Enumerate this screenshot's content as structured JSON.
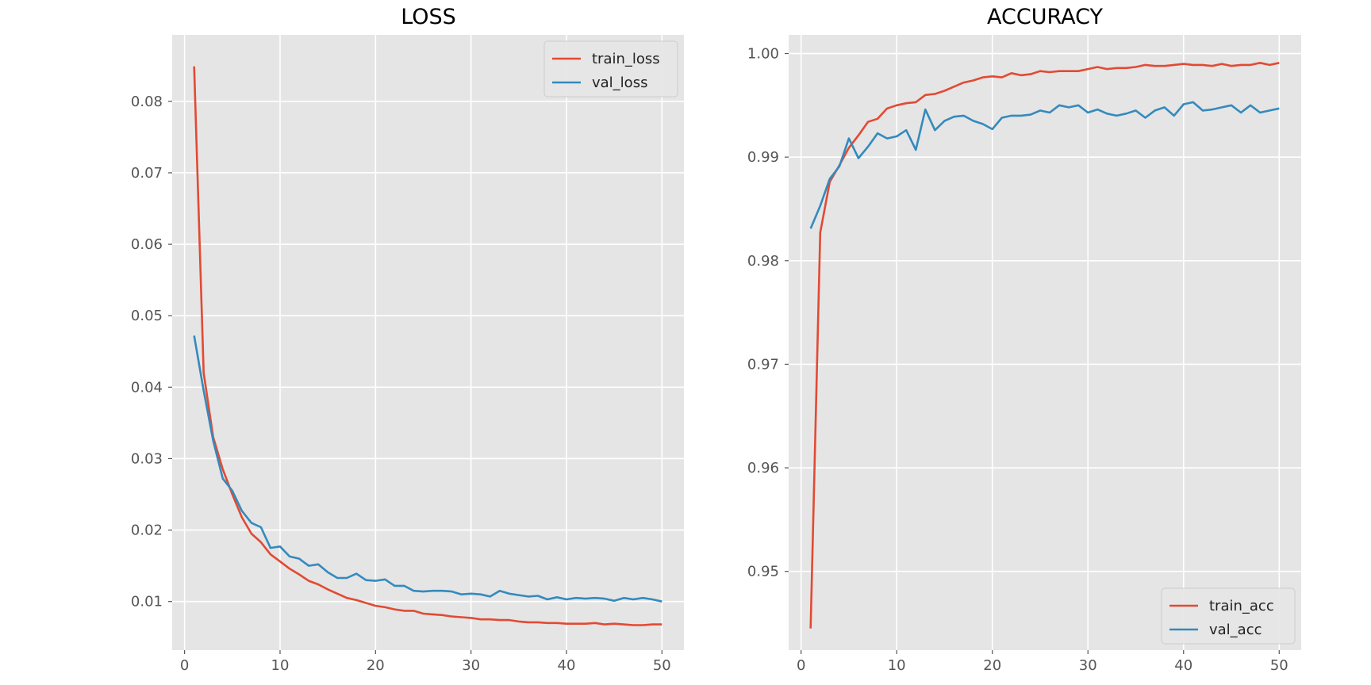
{
  "colors": {
    "train": "#e24a33",
    "val": "#348abd",
    "background": "#e5e5e5",
    "grid": "#ffffff"
  },
  "chart_data": [
    {
      "type": "line",
      "title": "LOSS",
      "xlabel": "",
      "ylabel": "",
      "xlim": [
        -1.3,
        52.3
      ],
      "ylim": [
        0.0032,
        0.0893
      ],
      "xticks": [
        0,
        10,
        20,
        30,
        40,
        50
      ],
      "yticks": [
        0.01,
        0.02,
        0.03,
        0.04,
        0.05,
        0.06,
        0.07,
        0.08
      ],
      "ytick_labels": [
        "0.01",
        "0.02",
        "0.03",
        "0.04",
        "0.05",
        "0.06",
        "0.07",
        "0.08"
      ],
      "grid": true,
      "legend_position": "upper right",
      "x": [
        1,
        2,
        3,
        4,
        5,
        6,
        7,
        8,
        9,
        10,
        11,
        12,
        13,
        14,
        15,
        16,
        17,
        18,
        19,
        20,
        21,
        22,
        23,
        24,
        25,
        26,
        27,
        28,
        29,
        30,
        31,
        32,
        33,
        34,
        35,
        36,
        37,
        38,
        39,
        40,
        41,
        42,
        43,
        44,
        45,
        46,
        47,
        48,
        49,
        50
      ],
      "series": [
        {
          "name": "train_loss",
          "color": "#e24a33",
          "values": [
            0.0849,
            0.042,
            0.033,
            0.0285,
            0.025,
            0.0218,
            0.0195,
            0.0183,
            0.0166,
            0.0156,
            0.0146,
            0.0138,
            0.0129,
            0.0124,
            0.0117,
            0.0111,
            0.0105,
            0.0102,
            0.0098,
            0.0094,
            0.0092,
            0.0089,
            0.0087,
            0.0087,
            0.0083,
            0.0082,
            0.0081,
            0.0079,
            0.0078,
            0.0077,
            0.0075,
            0.0075,
            0.0074,
            0.0074,
            0.0072,
            0.0071,
            0.0071,
            0.007,
            0.007,
            0.0069,
            0.0069,
            0.0069,
            0.007,
            0.0068,
            0.0069,
            0.0068,
            0.0067,
            0.0067,
            0.0068,
            0.0068
          ]
        },
        {
          "name": "val_loss",
          "color": "#348abd",
          "values": [
            0.0472,
            0.0395,
            0.0325,
            0.0272,
            0.0255,
            0.0227,
            0.021,
            0.0204,
            0.0175,
            0.0177,
            0.0163,
            0.016,
            0.015,
            0.0152,
            0.0141,
            0.0133,
            0.0133,
            0.0139,
            0.013,
            0.0129,
            0.0131,
            0.0122,
            0.0122,
            0.0115,
            0.0114,
            0.0115,
            0.0115,
            0.0114,
            0.011,
            0.0111,
            0.011,
            0.0107,
            0.0115,
            0.0111,
            0.0109,
            0.0107,
            0.0108,
            0.0103,
            0.0106,
            0.0103,
            0.0105,
            0.0104,
            0.0105,
            0.0104,
            0.0101,
            0.0105,
            0.0103,
            0.0105,
            0.0103,
            0.01
          ]
        }
      ]
    },
    {
      "type": "line",
      "title": "ACCURACY",
      "xlabel": "",
      "ylabel": "",
      "xlim": [
        -1.3,
        52.3
      ],
      "ylim": [
        0.9424,
        1.0018
      ],
      "xticks": [
        0,
        10,
        20,
        30,
        40,
        50
      ],
      "yticks": [
        0.95,
        0.96,
        0.97,
        0.98,
        0.99,
        1.0
      ],
      "ytick_labels": [
        "0.95",
        "0.96",
        "0.97",
        "0.98",
        "0.99",
        "1.00"
      ],
      "grid": true,
      "legend_position": "lower right",
      "x": [
        1,
        2,
        3,
        4,
        5,
        6,
        7,
        8,
        9,
        10,
        11,
        12,
        13,
        14,
        15,
        16,
        17,
        18,
        19,
        20,
        21,
        22,
        23,
        24,
        25,
        26,
        27,
        28,
        29,
        30,
        31,
        32,
        33,
        34,
        35,
        36,
        37,
        38,
        39,
        40,
        41,
        42,
        43,
        44,
        45,
        46,
        47,
        48,
        49,
        50
      ],
      "series": [
        {
          "name": "train_acc",
          "color": "#e24a33",
          "values": [
            0.9445,
            0.9827,
            0.9876,
            0.9892,
            0.9909,
            0.9921,
            0.9934,
            0.9937,
            0.9947,
            0.995,
            0.9952,
            0.9953,
            0.996,
            0.9961,
            0.9964,
            0.9968,
            0.9972,
            0.9974,
            0.9977,
            0.9978,
            0.9977,
            0.9981,
            0.9979,
            0.998,
            0.9983,
            0.9982,
            0.9983,
            0.9983,
            0.9983,
            0.9985,
            0.9987,
            0.9985,
            0.9986,
            0.9986,
            0.9987,
            0.9989,
            0.9988,
            0.9988,
            0.9989,
            0.999,
            0.9989,
            0.9989,
            0.9988,
            0.999,
            0.9988,
            0.9989,
            0.9989,
            0.9991,
            0.9989,
            0.9991
          ]
        },
        {
          "name": "val_acc",
          "color": "#348abd",
          "values": [
            0.9831,
            0.9853,
            0.9879,
            0.9891,
            0.9918,
            0.9899,
            0.991,
            0.9923,
            0.9918,
            0.992,
            0.9926,
            0.9907,
            0.9946,
            0.9926,
            0.9935,
            0.9939,
            0.994,
            0.9935,
            0.9932,
            0.9927,
            0.9938,
            0.994,
            0.994,
            0.9941,
            0.9945,
            0.9943,
            0.995,
            0.9948,
            0.995,
            0.9943,
            0.9946,
            0.9942,
            0.994,
            0.9942,
            0.9945,
            0.9938,
            0.9945,
            0.9948,
            0.994,
            0.9951,
            0.9953,
            0.9945,
            0.9946,
            0.9948,
            0.995,
            0.9943,
            0.995,
            0.9943,
            0.9945,
            0.9947
          ]
        }
      ]
    }
  ]
}
